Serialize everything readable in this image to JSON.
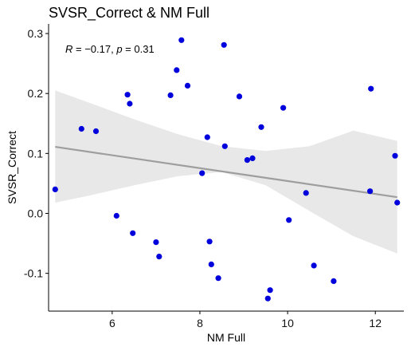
{
  "chart_data": {
    "type": "scatter",
    "title": "SVSR_Correct & NM Full",
    "xlabel": "NM Full",
    "ylabel": "SVSR_Correct",
    "xlim": [
      4.55,
      12.65
    ],
    "ylim": [
      -0.163,
      0.316
    ],
    "xticks": [
      6,
      8,
      10,
      12
    ],
    "xtick_labels": [
      "6",
      "8",
      "10",
      "12"
    ],
    "yticks": [
      -0.1,
      0.0,
      0.1,
      0.2,
      0.3
    ],
    "ytick_labels": [
      "-0.1",
      "0.0",
      "0.1",
      "0.2",
      "0.3"
    ],
    "grid": false,
    "annotation": {
      "prefix_r": "R",
      "r_text": " = −0.17, ",
      "prefix_p": "p",
      "p_text": " = 0.31"
    },
    "regression": {
      "x_start": 4.7,
      "y_start": 0.111,
      "x_end": 12.5,
      "y_end": 0.027,
      "color": "#9e9e9e"
    },
    "confidence_band": {
      "x": [
        4.7,
        5.5,
        6.5,
        7.5,
        8.5,
        9.5,
        10.5,
        11.5,
        12.5
      ],
      "upper": [
        0.205,
        0.184,
        0.157,
        0.132,
        0.112,
        0.104,
        0.112,
        0.138,
        0.121
      ],
      "lower": [
        0.018,
        0.03,
        0.047,
        0.062,
        0.069,
        0.047,
        0.004,
        -0.038,
        -0.067
      ],
      "color": "#e8e8e8"
    },
    "point_color": "#0000dd",
    "series": [
      {
        "x": [
          4.7,
          5.3,
          5.63,
          6.1,
          6.35,
          6.4,
          6.47,
          7.0,
          7.07,
          7.33,
          7.47,
          7.58,
          7.72,
          8.05,
          8.17,
          8.22,
          8.26,
          8.42,
          8.55,
          8.57,
          8.9,
          9.08,
          9.2,
          9.4,
          9.55,
          9.6,
          9.9,
          10.03,
          10.42,
          10.6,
          11.05,
          11.88,
          11.9,
          12.45,
          12.5
        ],
        "y": [
          0.04,
          0.141,
          0.137,
          -0.004,
          0.198,
          0.183,
          -0.033,
          -0.048,
          -0.072,
          0.197,
          0.239,
          0.289,
          0.213,
          0.067,
          0.127,
          -0.047,
          -0.085,
          -0.108,
          0.281,
          0.112,
          0.195,
          0.089,
          0.092,
          0.144,
          -0.142,
          -0.128,
          0.176,
          -0.011,
          0.034,
          -0.087,
          -0.113,
          0.037,
          0.208,
          0.096,
          0.018
        ]
      }
    ]
  }
}
